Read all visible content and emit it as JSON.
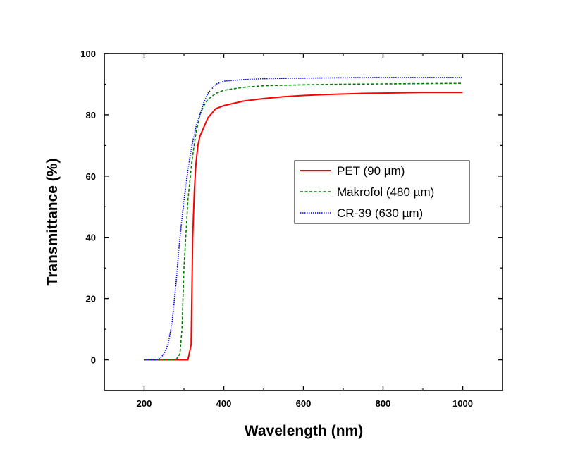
{
  "chart_data": {
    "type": "line",
    "xlabel": "Wavelength (nm)",
    "ylabel": "Transmittance (%)",
    "xlim": [
      100,
      1100
    ],
    "ylim": [
      -10,
      100
    ],
    "x_ticks": [
      200,
      400,
      600,
      800,
      1000
    ],
    "y_ticks": [
      0,
      20,
      40,
      60,
      80,
      100
    ],
    "legend_position": "center-right",
    "series": [
      {
        "name": "PET (90 µm)",
        "color": "#ff0000",
        "style": "solid",
        "x": [
          200,
          300,
          310,
          318,
          322,
          326,
          330,
          335,
          340,
          350,
          360,
          380,
          400,
          450,
          500,
          550,
          600,
          650,
          700,
          750,
          800,
          850,
          900,
          950,
          1000
        ],
        "y": [
          0,
          0,
          0,
          5,
          40,
          55,
          64,
          70,
          73,
          76,
          79,
          82,
          83,
          84.5,
          85.3,
          85.9,
          86.3,
          86.6,
          86.8,
          87,
          87.1,
          87.2,
          87.3,
          87.3,
          87.3
        ]
      },
      {
        "name": "Makrofol (480 µm)",
        "color": "#008000",
        "style": "dashed",
        "x": [
          200,
          280,
          290,
          295,
          300,
          310,
          320,
          330,
          340,
          350,
          360,
          380,
          400,
          450,
          500,
          600,
          700,
          800,
          900,
          1000
        ],
        "y": [
          0,
          0,
          2,
          10,
          30,
          52,
          65,
          74,
          80,
          83,
          85,
          87,
          88,
          89,
          89.5,
          89.8,
          90,
          90.1,
          90.2,
          90.3
        ]
      },
      {
        "name": "CR-39 (630 µm)",
        "color": "#0000ff",
        "style": "dotted",
        "x": [
          200,
          230,
          240,
          250,
          260,
          270,
          280,
          290,
          300,
          310,
          320,
          330,
          340,
          350,
          360,
          380,
          400,
          450,
          500,
          600,
          700,
          800,
          900,
          1000
        ],
        "y": [
          0,
          0,
          0.5,
          2,
          5,
          12,
          25,
          40,
          52,
          62,
          70,
          76,
          80,
          84,
          87,
          90,
          91,
          91.5,
          91.8,
          92,
          92.1,
          92.2,
          92.2,
          92.2
        ]
      }
    ]
  }
}
